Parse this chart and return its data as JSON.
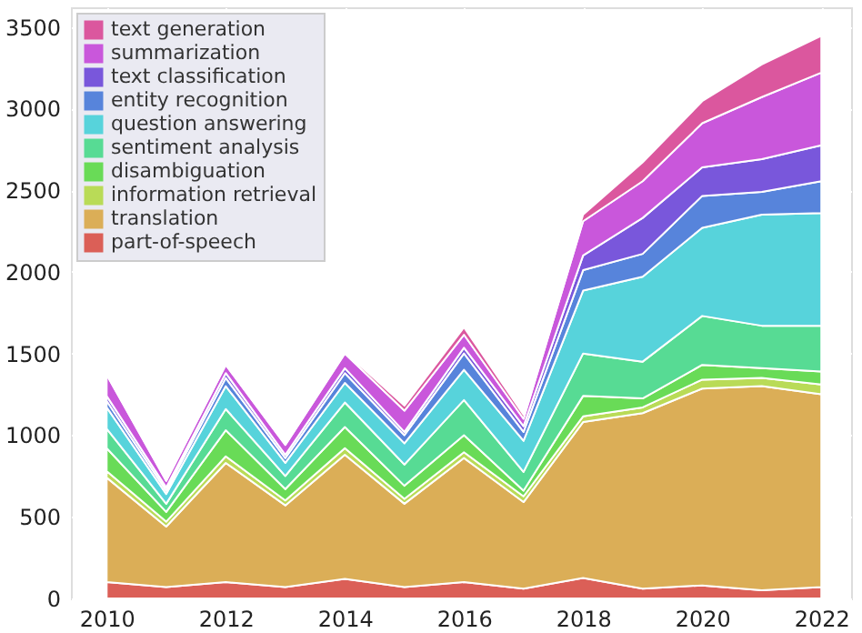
{
  "chart_data": {
    "type": "area",
    "stacked": true,
    "x": [
      2010,
      2011,
      2012,
      2013,
      2014,
      2015,
      2016,
      2017,
      2018,
      2019,
      2020,
      2021,
      2022
    ],
    "series": [
      {
        "name": "part-of-speech",
        "color": "#db5f57",
        "values": [
          100,
          70,
          100,
          70,
          120,
          70,
          100,
          60,
          125,
          60,
          80,
          50,
          70
        ]
      },
      {
        "name": "translation",
        "color": "#dbae57",
        "values": [
          640,
          370,
          730,
          500,
          760,
          510,
          760,
          530,
          955,
          1075,
          1205,
          1250,
          1180
        ]
      },
      {
        "name": "information retrieval",
        "color": "#b9db57",
        "values": [
          40,
          30,
          40,
          30,
          40,
          30,
          35,
          35,
          35,
          35,
          55,
          50,
          60
        ]
      },
      {
        "name": "disambiguation",
        "color": "#69db57",
        "values": [
          140,
          60,
          160,
          70,
          130,
          80,
          105,
          35,
          125,
          55,
          90,
          60,
          80
        ]
      },
      {
        "name": "sentiment analysis",
        "color": "#57db94",
        "values": [
          120,
          50,
          130,
          80,
          150,
          130,
          215,
          115,
          260,
          225,
          300,
          260,
          280
        ]
      },
      {
        "name": "question answering",
        "color": "#57d3db",
        "values": [
          130,
          60,
          140,
          80,
          120,
          130,
          185,
          190,
          385,
          520,
          540,
          680,
          690
        ]
      },
      {
        "name": "entity recognition",
        "color": "#5784db",
        "values": [
          40,
          20,
          50,
          30,
          60,
          50,
          100,
          55,
          125,
          140,
          195,
          140,
          195
        ]
      },
      {
        "name": "text classification",
        "color": "#7957db",
        "values": [
          30,
          20,
          30,
          20,
          30,
          20,
          35,
          35,
          90,
          220,
          175,
          200,
          220
        ]
      },
      {
        "name": "summarization",
        "color": "#c957db",
        "values": [
          130,
          40,
          50,
          60,
          90,
          130,
          80,
          45,
          210,
          225,
          270,
          380,
          445
        ]
      },
      {
        "name": "text generation",
        "color": "#db579e",
        "values": [
          10,
          10,
          10,
          10,
          10,
          30,
          45,
          25,
          40,
          115,
          135,
          200,
          225
        ]
      }
    ],
    "xlim": [
      2009.4,
      2022.5
    ],
    "xticks": [
      2010,
      2012,
      2014,
      2016,
      2018,
      2020,
      2022
    ],
    "ylim": [
      0,
      3620
    ],
    "yticks": [
      0,
      500,
      1000,
      1500,
      2000,
      2500,
      3000,
      3500
    ],
    "grid": true,
    "legend": "top left"
  }
}
